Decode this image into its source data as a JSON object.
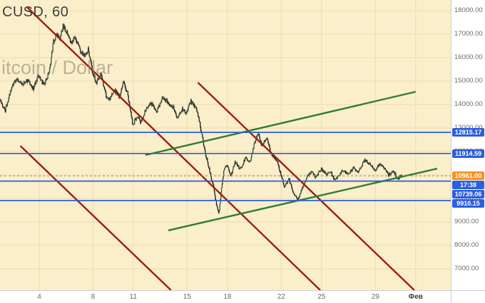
{
  "legend": {
    "symbol_title": "CUSD, 60",
    "symbol_desc": "itcoin / Dollar"
  },
  "colors": {
    "background": "#fbeeca",
    "grid": "#eedcae",
    "axis_bg": "#ffffff",
    "axis_text": "#6b6b6b",
    "level_line": "#2b5fdd",
    "level_badge_bg": "#2b5fdd",
    "current_badge_bg": "#f7941d",
    "countdown_badge_bg": "#2b5fdd",
    "channel_down": "#9c1f0e",
    "channel_up": "#2e7d32",
    "candle_up": "#35523f",
    "candle_down": "#1f1f1f",
    "candle_wick": "#3a3a3a",
    "current_price_line": "#8e9a5e"
  },
  "chart_data": {
    "type": "candlestick",
    "title": "CUSD, 60",
    "description": "itcoin / Dollar",
    "interval": "60",
    "y_axis": {
      "ticks": [
        "18000.00",
        "17000.00",
        "16000.00",
        "15000.00",
        "14000.00",
        "13000.00",
        "12000.00",
        "11000.00",
        "10000.00",
        "9000.00",
        "8000.00",
        "7000.00"
      ],
      "values": [
        18000,
        17000,
        16000,
        15000,
        14000,
        13000,
        12000,
        11000,
        10000,
        9000,
        8000,
        7000
      ],
      "visible_range": [
        6090,
        18450
      ]
    },
    "x_axis": {
      "unit": "day-of-january",
      "labels": [
        {
          "day": 4,
          "text": "4"
        },
        {
          "day": 8,
          "text": "8"
        },
        {
          "day": 11,
          "text": "11"
        },
        {
          "day": 15,
          "text": "15"
        },
        {
          "day": 18,
          "text": "18"
        },
        {
          "day": 22,
          "text": "22"
        },
        {
          "day": 25,
          "text": "25"
        },
        {
          "day": 29,
          "text": "29"
        },
        {
          "day": 32,
          "text": "Фев",
          "month": true
        }
      ]
    },
    "price_path": [
      [
        1.1,
        14200
      ],
      [
        1.5,
        13700
      ],
      [
        2.0,
        14800
      ],
      [
        2.4,
        15100
      ],
      [
        2.8,
        14850
      ],
      [
        3.2,
        15050
      ],
      [
        3.6,
        14700
      ],
      [
        4.0,
        15250
      ],
      [
        4.4,
        14800
      ],
      [
        4.8,
        15400
      ],
      [
        5.1,
        16700
      ],
      [
        5.4,
        17000
      ],
      [
        5.6,
        16800
      ],
      [
        5.8,
        17350
      ],
      [
        6.1,
        17100
      ],
      [
        6.4,
        16600
      ],
      [
        6.7,
        16900
      ],
      [
        7.0,
        16400
      ],
      [
        7.4,
        16100
      ],
      [
        7.7,
        16350
      ],
      [
        8.0,
        15350
      ],
      [
        8.3,
        14900
      ],
      [
        8.6,
        15350
      ],
      [
        9.0,
        14400
      ],
      [
        9.3,
        14200
      ],
      [
        9.6,
        14650
      ],
      [
        10.0,
        14300
      ],
      [
        10.3,
        14950
      ],
      [
        10.6,
        14500
      ],
      [
        11.0,
        13100
      ],
      [
        11.3,
        13500
      ],
      [
        11.6,
        13250
      ],
      [
        12.0,
        13850
      ],
      [
        12.4,
        14050
      ],
      [
        12.8,
        13700
      ],
      [
        13.2,
        14300
      ],
      [
        13.6,
        14100
      ],
      [
        14.0,
        13900
      ],
      [
        14.3,
        13450
      ],
      [
        14.7,
        13800
      ],
      [
        15.0,
        13650
      ],
      [
        15.3,
        14150
      ],
      [
        15.7,
        13850
      ],
      [
        16.0,
        13150
      ],
      [
        16.3,
        12150
      ],
      [
        16.6,
        11450
      ],
      [
        16.8,
        10950
      ],
      [
        17.0,
        10500
      ],
      [
        17.2,
        9800
      ],
      [
        17.4,
        9350
      ],
      [
        17.6,
        10500
      ],
      [
        17.8,
        11250
      ],
      [
        18.0,
        11450
      ],
      [
        18.3,
        10950
      ],
      [
        18.6,
        11550
      ],
      [
        19.0,
        11250
      ],
      [
        19.4,
        11750
      ],
      [
        19.7,
        11500
      ],
      [
        20.0,
        12250
      ],
      [
        20.3,
        12780
      ],
      [
        20.6,
        12250
      ],
      [
        21.0,
        12550
      ],
      [
        21.3,
        11850
      ],
      [
        21.7,
        11650
      ],
      [
        22.0,
        11050
      ],
      [
        22.3,
        10450
      ],
      [
        22.6,
        10850
      ],
      [
        23.0,
        10150
      ],
      [
        23.3,
        9960
      ],
      [
        23.6,
        10450
      ],
      [
        24.0,
        10950
      ],
      [
        24.3,
        11150
      ],
      [
        24.6,
        10900
      ],
      [
        25.0,
        11250
      ],
      [
        25.4,
        11000
      ],
      [
        25.7,
        11150
      ],
      [
        26.0,
        10750
      ],
      [
        26.3,
        11000
      ],
      [
        26.7,
        11200
      ],
      [
        27.0,
        11000
      ],
      [
        27.4,
        11300
      ],
      [
        27.7,
        11100
      ],
      [
        28.0,
        11400
      ],
      [
        28.3,
        11650
      ],
      [
        28.7,
        11400
      ],
      [
        29.0,
        11200
      ],
      [
        29.4,
        11500
      ],
      [
        29.7,
        11250
      ],
      [
        30.0,
        11000
      ],
      [
        30.4,
        11150
      ],
      [
        30.7,
        10850
      ],
      [
        31.0,
        10961
      ]
    ],
    "levels": [
      {
        "price": 12815.17,
        "label": "12815.17"
      },
      {
        "price": 11914.59,
        "label": "11914.59"
      },
      {
        "price": 10739.06,
        "label": "10739.06"
      },
      {
        "price": 9910.15,
        "label": "9910.15"
      }
    ],
    "current": {
      "price": 10961.0,
      "label": "10961.00",
      "countdown": "17:38"
    },
    "trendlines": [
      {
        "name": "descending-channel-line-1",
        "color_key": "channel_down",
        "d1": 3.1,
        "p1": 18150,
        "d2": 24.9,
        "p2": 6090
      },
      {
        "name": "descending-channel-line-2",
        "color_key": "channel_down",
        "d1": 2.6,
        "p1": 12240,
        "d2": 13.8,
        "p2": 6090
      },
      {
        "name": "descending-channel-line-3",
        "color_key": "channel_down",
        "d1": 15.8,
        "p1": 14940,
        "d2": 31.9,
        "p2": 6090
      },
      {
        "name": "ascending-channel-line-1",
        "color_key": "channel_up",
        "d1": 11.9,
        "p1": 11850,
        "d2": 32.0,
        "p2": 14545
      },
      {
        "name": "ascending-channel-line-2",
        "color_key": "channel_up",
        "d1": 13.6,
        "p1": 8640,
        "d2": 33.6,
        "p2": 11270
      }
    ]
  }
}
